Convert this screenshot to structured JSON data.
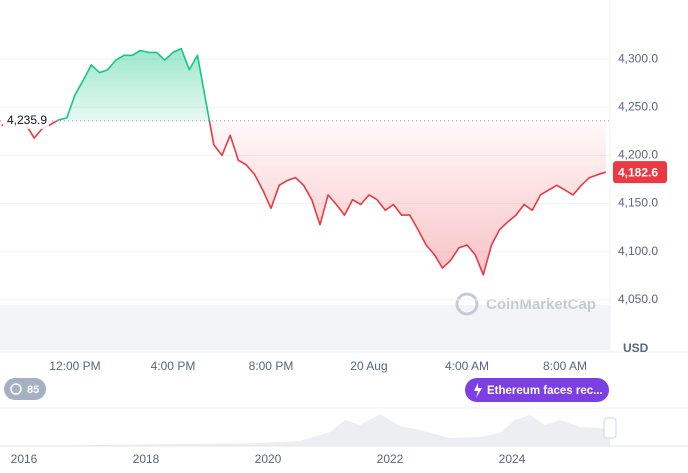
{
  "chart_data": {
    "type": "line",
    "values": [
      4231,
      4235,
      4236,
      4232,
      4218,
      4228,
      4232,
      4237,
      4239,
      4263,
      4278,
      4294,
      4286,
      4289,
      4299,
      4304,
      4304,
      4309,
      4307,
      4307,
      4299,
      4307,
      4311,
      4289,
      4304,
      4257,
      4211,
      4200,
      4221,
      4195,
      4190,
      4180,
      4164,
      4145,
      4169,
      4174,
      4177,
      4169,
      4154,
      4128,
      4159,
      4149,
      4138,
      4154,
      4149,
      4159,
      4154,
      4143,
      4149,
      4138,
      4138,
      4123,
      4107,
      4097,
      4083,
      4091,
      4104,
      4107,
      4097,
      4076,
      4107,
      4123,
      4131,
      4138,
      4149,
      4143,
      4159,
      4164,
      4169,
      4164,
      4159,
      4169,
      4177,
      4180,
      4182.6
    ],
    "xlim": [
      0,
      74
    ],
    "xticks": [
      {
        "value": 9,
        "label": "12:00 PM"
      },
      {
        "value": 21,
        "label": "4:00 PM"
      },
      {
        "value": 33,
        "label": "8:00 PM"
      },
      {
        "value": 45,
        "label": "20 Aug"
      },
      {
        "value": 57,
        "label": "4:00 AM"
      },
      {
        "value": 69,
        "label": "8:00 AM"
      }
    ],
    "ylim": [
      4000,
      4350
    ],
    "yticks": [
      {
        "value": 4050,
        "label": "4,050.0"
      },
      {
        "value": 4100,
        "label": "4,100.0"
      },
      {
        "value": 4150,
        "label": "4,150.0"
      },
      {
        "value": 4200,
        "label": "4,200.0"
      },
      {
        "value": 4250,
        "label": "4,250.0"
      },
      {
        "value": 4300,
        "label": "4,300.0"
      }
    ],
    "reference": {
      "value": 4235.9,
      "label": "4,235.9"
    },
    "last_price": {
      "value": 4182.6,
      "label": "4,182.6"
    },
    "y_unit": "USD",
    "up_color": "#16c784",
    "down_color": "#ea3943",
    "grid": true
  },
  "watermark": "CoinMarketCap",
  "badge": "85",
  "news": "Ethereum faces rec...",
  "overview": {
    "xticks": [
      "2016",
      "2018",
      "2020",
      "2022",
      "2024"
    ]
  }
}
